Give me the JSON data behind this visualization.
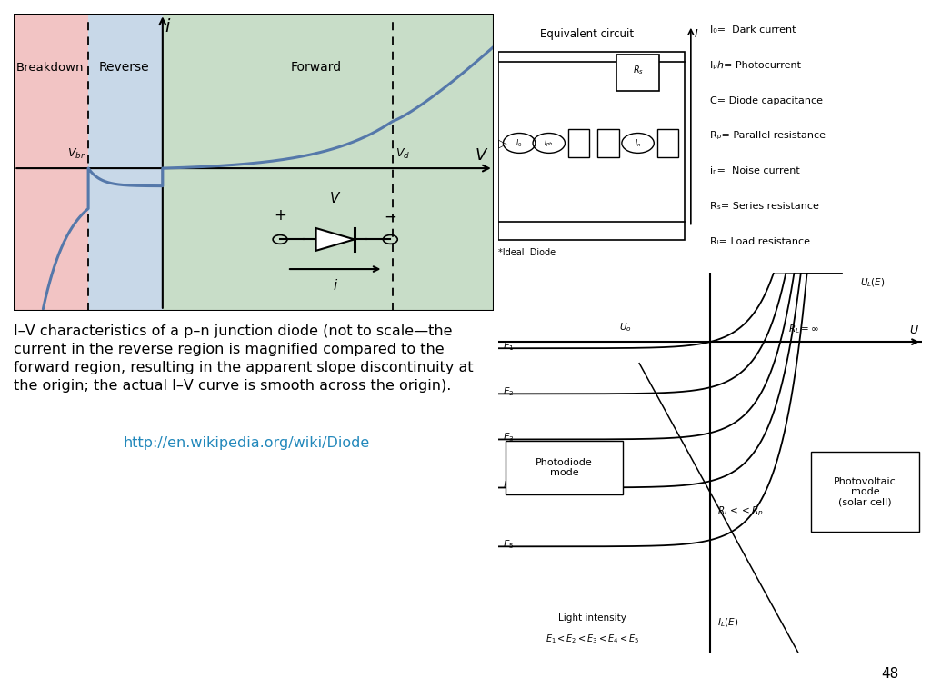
{
  "background_color": "#ffffff",
  "slide_number": "48",
  "iv_plot": {
    "breakdown_bg": "#f2c4c4",
    "reverse_bg": "#c8d8e8",
    "forward_bg": "#c8ddc8",
    "breakdown_label": "Breakdown",
    "reverse_label": "Reverse",
    "forward_label": "Forward",
    "curve_color": "#5578aa",
    "vbr_text": "V$_{br}$",
    "vd_text": "V$_d$"
  },
  "caption_line1": "I–V characteristics of a p–n junction diode (not to scale—the",
  "caption_line2": "current in the reverse region is magnified compared to the",
  "caption_line3": "forward region, resulting in the apparent slope discontinuity at",
  "caption_line4": "the origin; the actual I–V curve is smooth across the origin).",
  "caption_fontsize": 11.5,
  "caption_color": "#000000",
  "link_text": "http://en.wikipedia.org/wiki/Diode",
  "link_color": "#2288bb",
  "pd_legend": [
    "I₀=  Dark current",
    "Iₚℎ= Photocurrent",
    "C⁣= Diode capacitance",
    "Rₚ= Parallel resistance",
    "iₙ=  Noise current",
    "Rₛ= Series resistance",
    "Rₗ= Load resistance"
  ]
}
